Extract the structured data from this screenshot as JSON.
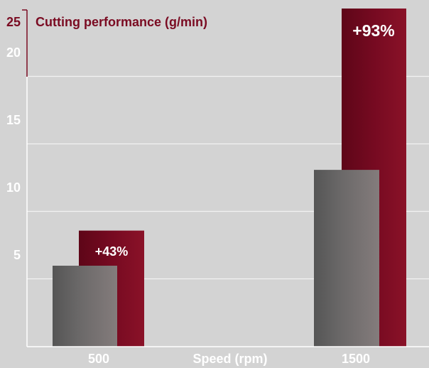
{
  "chart_data": {
    "type": "bar",
    "title": "Cutting performance (g/min)",
    "xlabel": "Speed (rpm)",
    "ylabel": "",
    "categories": [
      "500",
      "1500"
    ],
    "ylim": [
      0,
      25
    ],
    "yticks": [
      5,
      10,
      15,
      20,
      25
    ],
    "grid": true,
    "series": [
      {
        "values": [
          6.0,
          13.1
        ],
        "color": "#6f6a6a"
      },
      {
        "values": [
          8.6,
          25.3
        ],
        "color": "#7a0b22"
      }
    ],
    "annotations": [
      "+43%",
      "+93%"
    ]
  }
}
